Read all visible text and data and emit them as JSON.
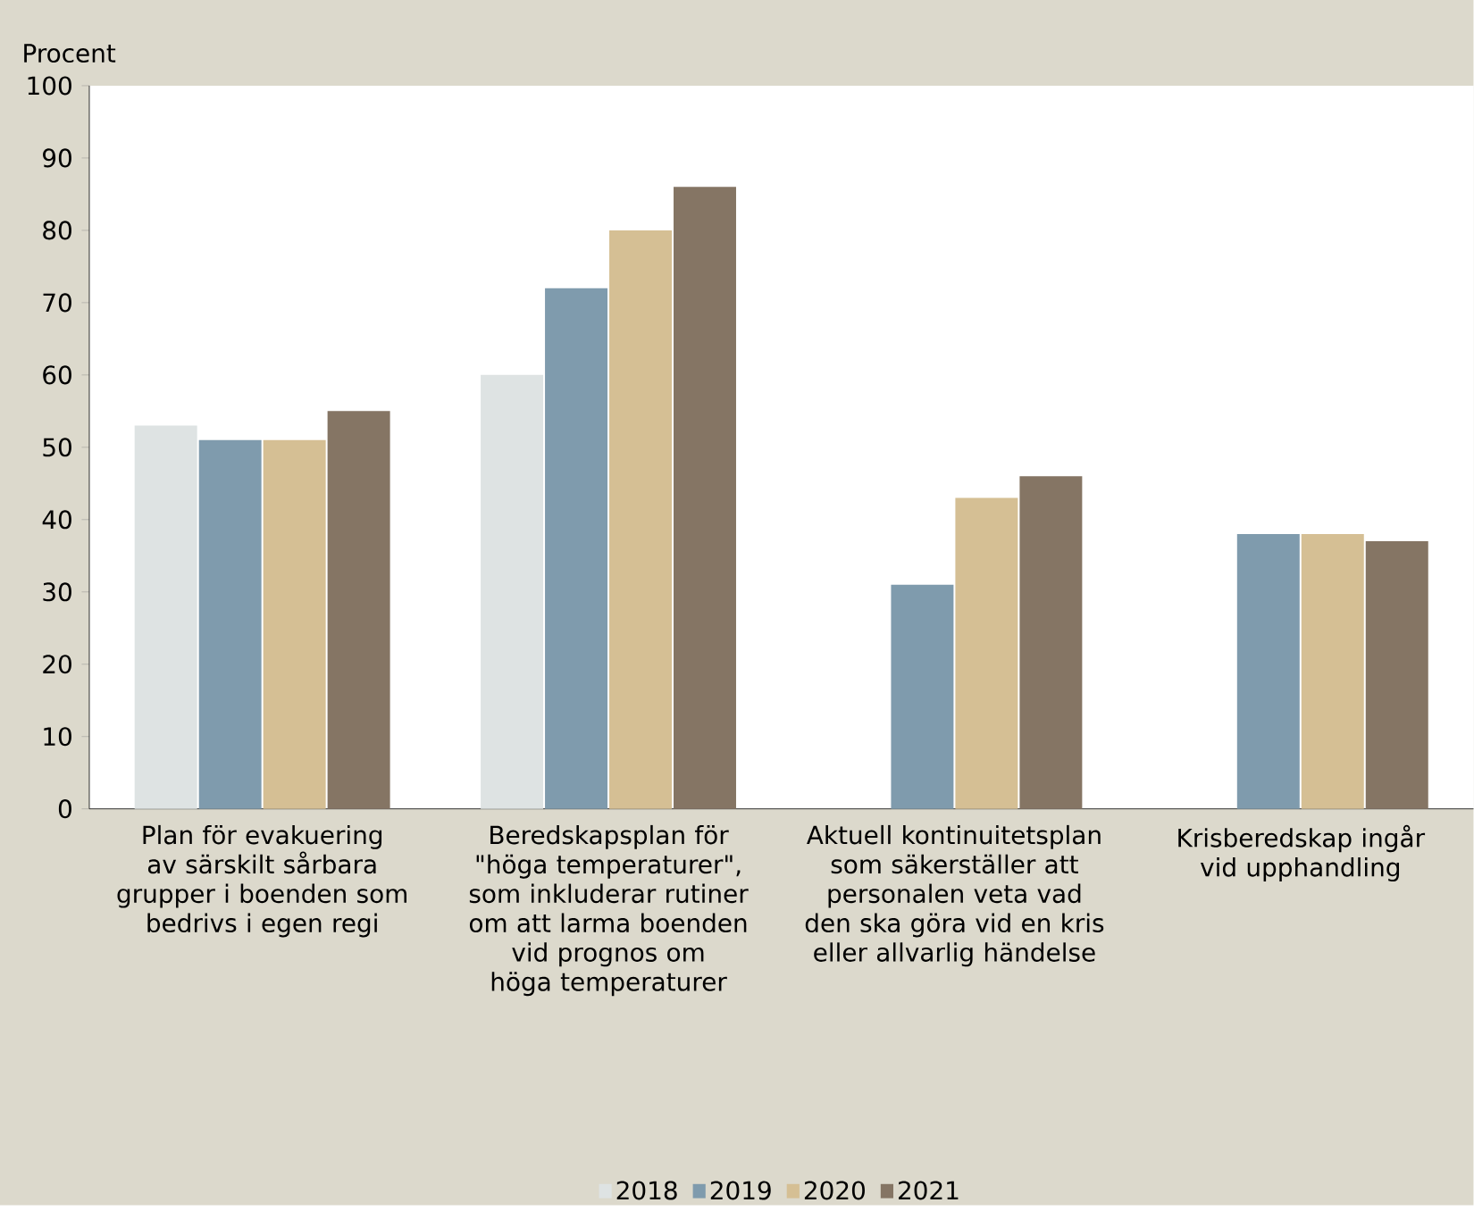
{
  "chart_data": {
    "type": "bar",
    "ylabel": "Procent",
    "categories": [
      "Plan för evakuering av särskilt sårbara grupper i boenden som bedrivs i egen regi",
      "Beredskapsplan för \"höga temperaturer\", som inkluderar rutiner om att larma boenden vid prognos om höga temperaturer",
      "Aktuell kontinuitetsplan som säkerställer att personalen veta vad den ska göra vid en kris eller allvarlig händelse",
      "Krisberedskap ingår vid upphandling"
    ],
    "series": [
      {
        "name": "2018",
        "color": "#dee3e3",
        "values": [
          53,
          60,
          null,
          null
        ]
      },
      {
        "name": "2019",
        "color": "#7f9bad",
        "values": [
          51,
          72,
          31,
          38
        ]
      },
      {
        "name": "2020",
        "color": "#d5bf94",
        "values": [
          51,
          80,
          43,
          38
        ]
      },
      {
        "name": "2021",
        "color": "#857564",
        "values": [
          55,
          86,
          46,
          37
        ]
      }
    ],
    "ylim": [
      0,
      100
    ],
    "yticks": [
      0,
      10,
      20,
      30,
      40,
      50,
      60,
      70,
      80,
      90,
      100
    ],
    "grid": false,
    "legend": "bottom"
  }
}
